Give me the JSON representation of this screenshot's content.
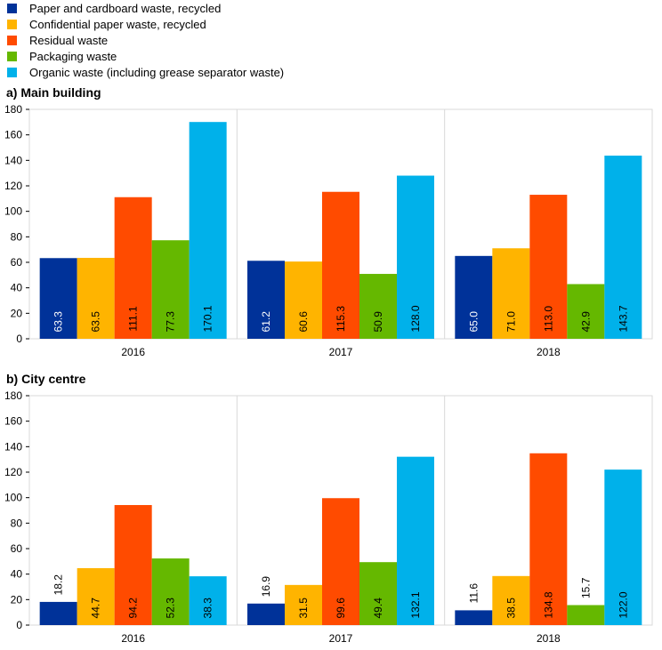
{
  "chart_data": [
    {
      "type": "bar",
      "title": "a) Main building",
      "categories": [
        "2016",
        "2017",
        "2018"
      ],
      "ylim": [
        0,
        180
      ],
      "yticks": [
        0,
        20,
        40,
        60,
        80,
        100,
        120,
        140,
        160,
        180
      ],
      "grid": false,
      "legend": "top-left",
      "series": [
        {
          "name": "Paper and cardboard waste, recycled",
          "color": "#003299",
          "values": [
            63.3,
            61.2,
            65.0
          ],
          "labels": [
            "63.3",
            "61.2",
            "65.0"
          ]
        },
        {
          "name": "Confidential paper waste, recycled",
          "color": "#FFB400",
          "values": [
            63.5,
            60.6,
            71.0
          ],
          "labels": [
            "63.5",
            "60.6",
            "71.0"
          ]
        },
        {
          "name": "Residual waste",
          "color": "#FF4B00",
          "values": [
            111.1,
            115.3,
            113.0
          ],
          "labels": [
            "111.1",
            "115.3",
            "113.0"
          ]
        },
        {
          "name": "Packaging waste",
          "color": "#65B800",
          "values": [
            77.3,
            50.9,
            42.9
          ],
          "labels": [
            "77.3",
            "50.9",
            "42.9"
          ]
        },
        {
          "name": "Organic waste (including grease separator waste)",
          "color": "#00B1EA",
          "values": [
            170.1,
            128.0,
            143.7
          ],
          "labels": [
            "170.1",
            "128.0",
            "143.7"
          ]
        }
      ]
    },
    {
      "type": "bar",
      "title": "b) City centre",
      "categories": [
        "2016",
        "2017",
        "2018"
      ],
      "ylim": [
        0,
        180
      ],
      "yticks": [
        0,
        20,
        40,
        60,
        80,
        100,
        120,
        140,
        160,
        180
      ],
      "grid": false,
      "series": [
        {
          "name": "Paper and cardboard waste, recycled",
          "color": "#003299",
          "values": [
            18.2,
            16.9,
            11.6
          ],
          "labels": [
            "18.2",
            "16.9",
            "11.6"
          ]
        },
        {
          "name": "Confidential paper waste, recycled",
          "color": "#FFB400",
          "values": [
            44.7,
            31.5,
            38.5
          ],
          "labels": [
            "44.7",
            "31.5",
            "38.5"
          ]
        },
        {
          "name": "Residual waste",
          "color": "#FF4B00",
          "values": [
            94.2,
            99.6,
            134.8
          ],
          "labels": [
            "94.2",
            "99.6",
            "134.8"
          ]
        },
        {
          "name": "Packaging waste",
          "color": "#65B800",
          "values": [
            52.3,
            49.4,
            15.7
          ],
          "labels": [
            "52.3",
            "49.4",
            "15.7"
          ]
        },
        {
          "name": "Organic waste (including grease separator waste)",
          "color": "#00B1EA",
          "values": [
            38.3,
            132.1,
            122.0
          ],
          "labels": [
            "38.3",
            "132.1",
            "122.0"
          ]
        }
      ]
    }
  ]
}
